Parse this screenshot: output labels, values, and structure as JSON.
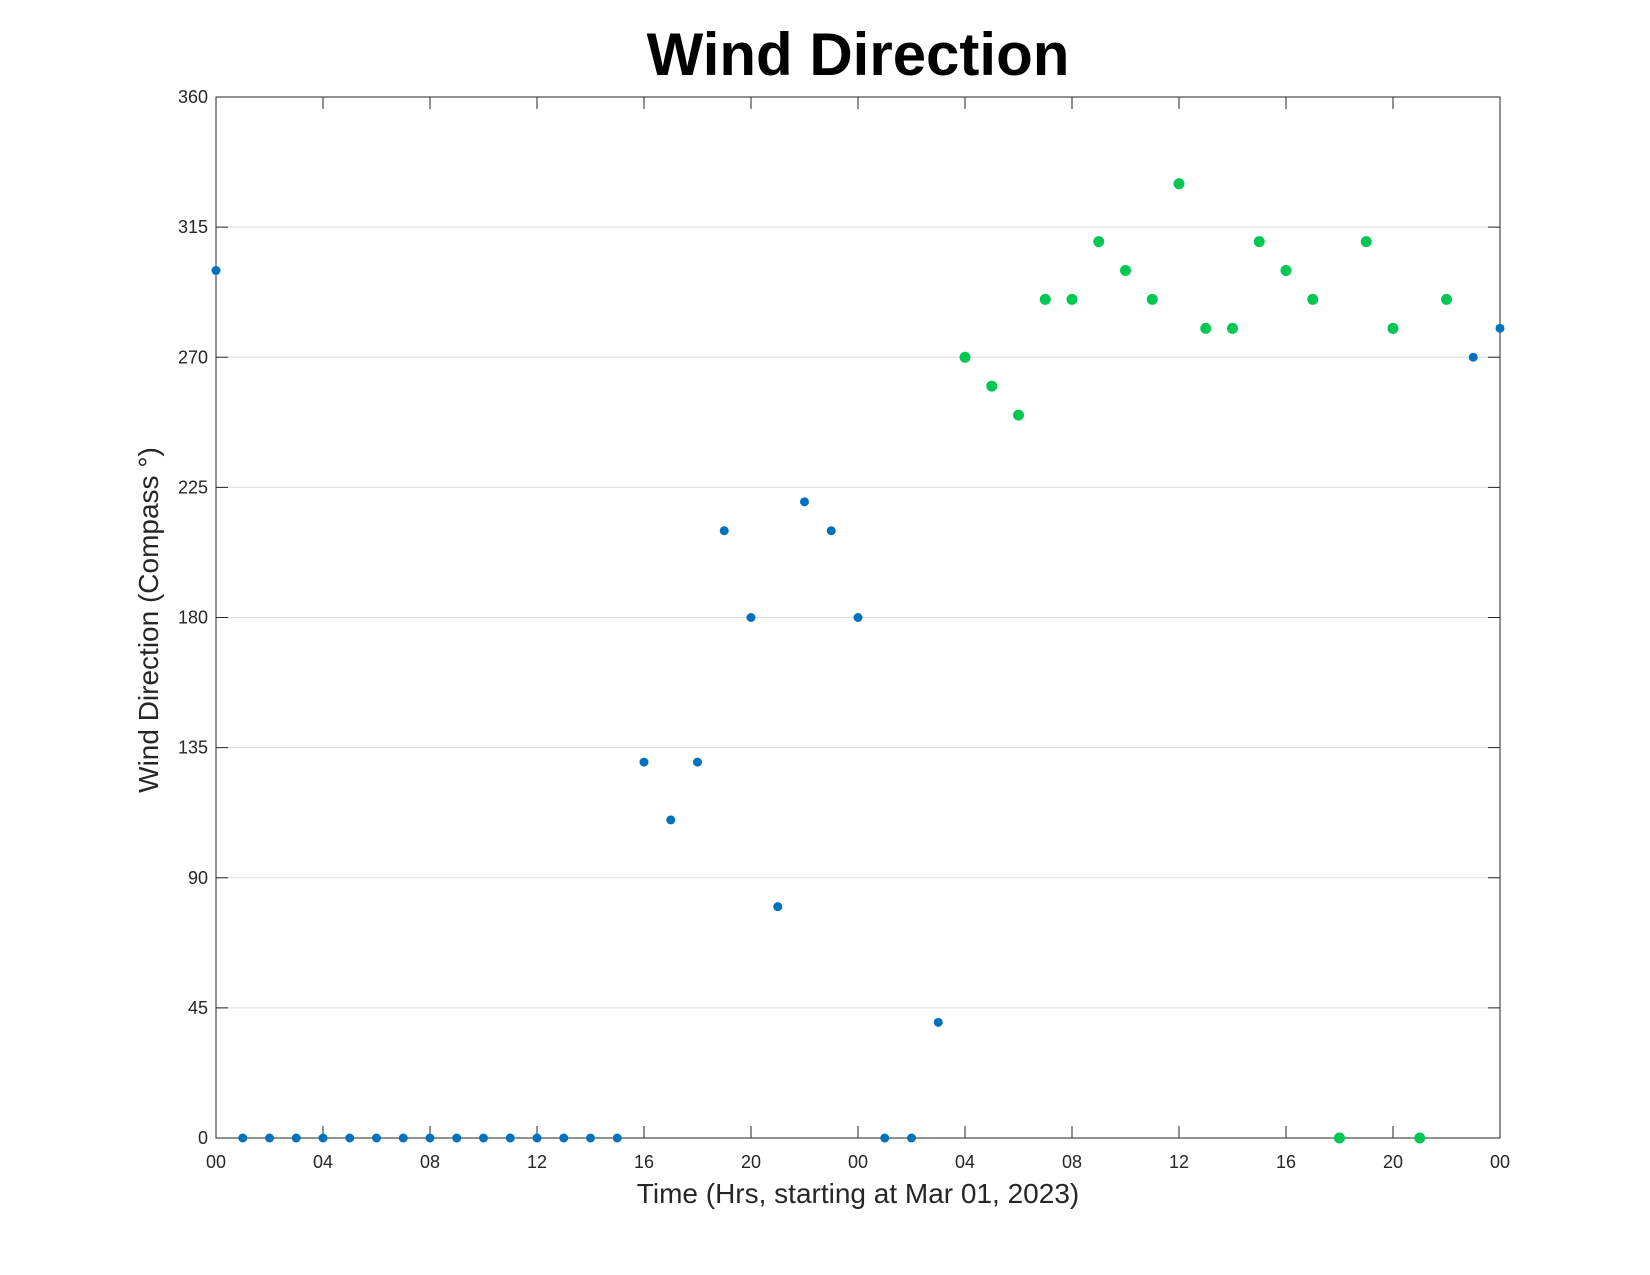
{
  "chart_data": {
    "type": "scatter",
    "title": "Wind Direction",
    "xlabel": "Time (Hrs, starting at Mar 01, 2023)",
    "ylabel": "Wind Direction (Compass °)",
    "x_unit": "hours",
    "xlim": [
      0,
      48
    ],
    "ylim": [
      0,
      360
    ],
    "yticks": [
      0,
      45,
      90,
      135,
      180,
      225,
      270,
      315,
      360
    ],
    "xticks": [
      0,
      4,
      8,
      12,
      16,
      20,
      24,
      28,
      32,
      36,
      40,
      44,
      48
    ],
    "xtick_labels": [
      "00",
      "04",
      "08",
      "12",
      "16",
      "20",
      "00",
      "04",
      "08",
      "12",
      "16",
      "20",
      "00"
    ],
    "grid": "horizontal",
    "series": [
      {
        "color": "#0072bd",
        "points": [
          {
            "x": 0,
            "y": 300
          },
          {
            "x": 1,
            "y": 0
          },
          {
            "x": 2,
            "y": 0
          },
          {
            "x": 3,
            "y": 0
          },
          {
            "x": 4,
            "y": 0
          },
          {
            "x": 5,
            "y": 0
          },
          {
            "x": 6,
            "y": 0
          },
          {
            "x": 7,
            "y": 0
          },
          {
            "x": 8,
            "y": 0
          },
          {
            "x": 9,
            "y": 0
          },
          {
            "x": 10,
            "y": 0
          },
          {
            "x": 11,
            "y": 0
          },
          {
            "x": 12,
            "y": 0
          },
          {
            "x": 13,
            "y": 0
          },
          {
            "x": 14,
            "y": 0
          },
          {
            "x": 15,
            "y": 0
          },
          {
            "x": 16,
            "y": 130
          },
          {
            "x": 17,
            "y": 110
          },
          {
            "x": 18,
            "y": 130
          },
          {
            "x": 19,
            "y": 210
          },
          {
            "x": 20,
            "y": 180
          },
          {
            "x": 21,
            "y": 80
          },
          {
            "x": 22,
            "y": 220
          },
          {
            "x": 23,
            "y": 210
          },
          {
            "x": 24,
            "y": 180
          },
          {
            "x": 25,
            "y": 0
          },
          {
            "x": 26,
            "y": 0
          },
          {
            "x": 27,
            "y": 40
          },
          {
            "x": 47,
            "y": 270
          },
          {
            "x": 48,
            "y": 280
          }
        ]
      },
      {
        "color": "#00c853",
        "points": [
          {
            "x": 28,
            "y": 270
          },
          {
            "x": 29,
            "y": 260
          },
          {
            "x": 30,
            "y": 250
          },
          {
            "x": 31,
            "y": 290
          },
          {
            "x": 32,
            "y": 290
          },
          {
            "x": 33,
            "y": 310
          },
          {
            "x": 34,
            "y": 300
          },
          {
            "x": 35,
            "y": 290
          },
          {
            "x": 36,
            "y": 330
          },
          {
            "x": 37,
            "y": 280
          },
          {
            "x": 38,
            "y": 280
          },
          {
            "x": 39,
            "y": 310
          },
          {
            "x": 40,
            "y": 300
          },
          {
            "x": 41,
            "y": 290
          },
          {
            "x": 42,
            "y": 0
          },
          {
            "x": 43,
            "y": 310
          },
          {
            "x": 44,
            "y": 280
          },
          {
            "x": 45,
            "y": 0
          },
          {
            "x": 46,
            "y": 290
          }
        ]
      }
    ]
  }
}
